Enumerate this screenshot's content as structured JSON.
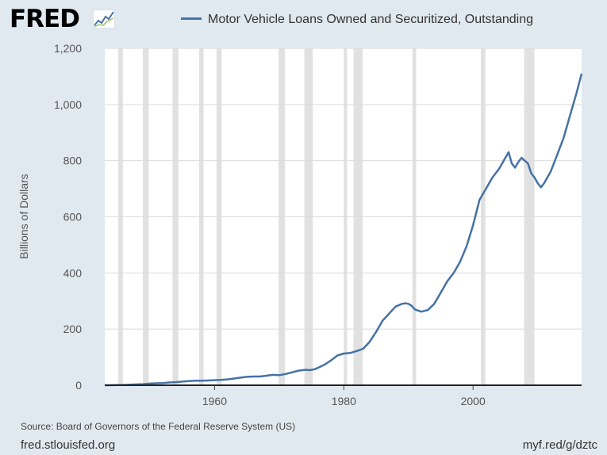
{
  "header": {
    "logo_text": "FRED",
    "logo_icon": "sparkline-chart-icon"
  },
  "footer": {
    "source": "Source: Board of Governors of the Federal Reserve System (US)",
    "site": "fred.stlouisfed.org",
    "shortlink": "myf.red/g/dztc"
  },
  "colors": {
    "background": "#e1e9f0",
    "plot_background": "#ffffff",
    "series": "#4572a7",
    "recession": "#e1e1e1",
    "grid": "#dcdcdc"
  },
  "chart_data": {
    "type": "line",
    "title": "",
    "legend": [
      "Motor Vehicle Loans Owned and Securitized, Outstanding"
    ],
    "legend_position": "top",
    "xlabel": "",
    "ylabel": "Billions of Dollars",
    "xlim": [
      1943,
      2016.8
    ],
    "ylim": [
      0,
      1200
    ],
    "x_ticks": [
      1960,
      1980,
      2000
    ],
    "x_tick_labels": [
      "1960",
      "1980",
      "2000"
    ],
    "y_ticks": [
      0,
      200,
      400,
      600,
      800,
      1000,
      1200
    ],
    "y_tick_labels": [
      "0",
      "200",
      "400",
      "600",
      "800",
      "1,000",
      "1,200"
    ],
    "grid": "horizontal",
    "recessions": [
      [
        1945.1,
        1945.8
      ],
      [
        1948.9,
        1949.8
      ],
      [
        1953.5,
        1954.4
      ],
      [
        1957.6,
        1958.3
      ],
      [
        1960.3,
        1961.1
      ],
      [
        1969.9,
        1970.9
      ],
      [
        1973.9,
        1975.2
      ],
      [
        1980.0,
        1980.5
      ],
      [
        1981.5,
        1982.9
      ],
      [
        1990.6,
        1991.2
      ],
      [
        2001.2,
        2001.9
      ],
      [
        2007.9,
        2009.5
      ]
    ],
    "series": [
      {
        "name": "Motor Vehicle Loans Owned and Securitized, Outstanding",
        "x": [
          1943,
          1945,
          1946,
          1947,
          1948,
          1949,
          1950,
          1951,
          1952,
          1953,
          1954,
          1955,
          1956,
          1957,
          1958,
          1959,
          1960,
          1961,
          1962,
          1963,
          1964,
          1965,
          1966,
          1967,
          1968,
          1969,
          1970,
          1971,
          1972,
          1973,
          1974,
          1974.8,
          1975.5,
          1976,
          1977,
          1978,
          1979,
          1980,
          1981,
          1982,
          1983,
          1984,
          1985,
          1986,
          1987,
          1988,
          1989,
          1989.5,
          1990,
          1990.5,
          1991,
          1992,
          1993,
          1994,
          1995,
          1996,
          1997,
          1998,
          1999,
          2000,
          2001,
          2002,
          2003,
          2004,
          2005,
          2005.5,
          2006,
          2006.5,
          2007,
          2007.5,
          2008,
          2008.5,
          2009,
          2009.5,
          2010,
          2010.5,
          2011,
          2012,
          2013,
          2014,
          2015,
          2016,
          2016.8
        ],
        "values": [
          0,
          0.5,
          1,
          2,
          3,
          4,
          6,
          7,
          8,
          10,
          11,
          13,
          15,
          16,
          16,
          17,
          18,
          19,
          21,
          24,
          27,
          30,
          31,
          31,
          34,
          37,
          36,
          40,
          46,
          52,
          55,
          54,
          57,
          62,
          73,
          88,
          106,
          113,
          115,
          122,
          130,
          155,
          190,
          230,
          255,
          280,
          290,
          292,
          290,
          283,
          270,
          262,
          268,
          290,
          330,
          370,
          400,
          440,
          495,
          570,
          660,
          700,
          740,
          770,
          810,
          830,
          790,
          775,
          795,
          810,
          800,
          790,
          755,
          740,
          720,
          705,
          720,
          760,
          820,
          880,
          960,
          1040,
          1110
        ]
      }
    ]
  }
}
